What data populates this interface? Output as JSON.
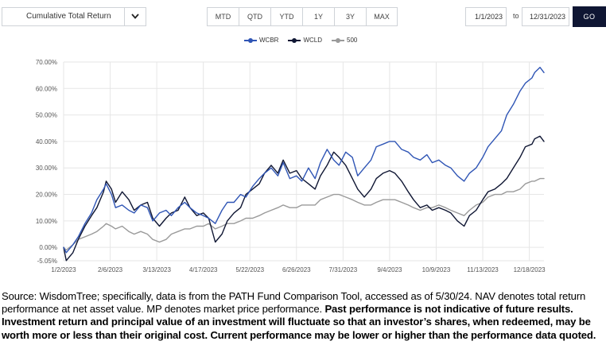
{
  "controls": {
    "metric_select": "Cumulative Total Return",
    "ranges": [
      "MTD",
      "QTD",
      "YTD",
      "1Y",
      "3Y",
      "MAX"
    ],
    "start_date": "1/1/2023",
    "to_label": "to",
    "end_date": "12/31/2023",
    "go_label": "GO"
  },
  "colors": {
    "WCBR": "#2f55b5",
    "WCLD": "#0f1633",
    "500": "#9a9a9a",
    "grid": "#e6e6e6"
  },
  "chart_data": {
    "type": "line",
    "title": "",
    "xlabel": "",
    "ylabel": "",
    "ylim": [
      -5.05,
      70
    ],
    "yticks": [
      -5.05,
      0,
      10,
      20,
      30,
      40,
      50,
      60,
      70
    ],
    "ytick_labels": [
      "-5.05%",
      "0.00%",
      "10.00%",
      "20.00%",
      "30.00%",
      "40.00%",
      "50.00%",
      "60.00%",
      "70.00%"
    ],
    "xticks": [
      "1/2/2023",
      "2/6/2023",
      "3/13/2023",
      "4/17/2023",
      "5/22/2023",
      "6/26/2023",
      "7/31/2023",
      "9/4/2023",
      "10/9/2023",
      "11/13/2023",
      "12/18/2023"
    ],
    "x_range": [
      "2023-01-02",
      "2023-12-29"
    ],
    "legend_position": "top-center",
    "series": [
      {
        "name": "WCBR",
        "points": [
          [
            "2023-01-02",
            0
          ],
          [
            "2023-01-04",
            -2
          ],
          [
            "2023-01-09",
            1
          ],
          [
            "2023-01-13",
            4
          ],
          [
            "2023-01-18",
            9
          ],
          [
            "2023-01-23",
            13
          ],
          [
            "2023-01-27",
            18
          ],
          [
            "2023-02-01",
            22
          ],
          [
            "2023-02-03",
            24
          ],
          [
            "2023-02-07",
            20
          ],
          [
            "2023-02-10",
            15
          ],
          [
            "2023-02-15",
            16
          ],
          [
            "2023-02-20",
            14
          ],
          [
            "2023-02-24",
            13
          ],
          [
            "2023-03-01",
            16
          ],
          [
            "2023-03-06",
            15
          ],
          [
            "2023-03-10",
            10
          ],
          [
            "2023-03-15",
            13
          ],
          [
            "2023-03-20",
            14
          ],
          [
            "2023-03-24",
            12
          ],
          [
            "2023-03-29",
            15
          ],
          [
            "2023-04-03",
            17
          ],
          [
            "2023-04-07",
            15
          ],
          [
            "2023-04-12",
            13
          ],
          [
            "2023-04-17",
            12
          ],
          [
            "2023-04-21",
            11
          ],
          [
            "2023-04-26",
            9
          ],
          [
            "2023-05-01",
            14
          ],
          [
            "2023-05-05",
            17
          ],
          [
            "2023-05-10",
            17
          ],
          [
            "2023-05-15",
            20
          ],
          [
            "2023-05-19",
            19
          ],
          [
            "2023-05-24",
            23
          ],
          [
            "2023-05-29",
            26
          ],
          [
            "2023-06-02",
            28
          ],
          [
            "2023-06-07",
            30
          ],
          [
            "2023-06-12",
            27
          ],
          [
            "2023-06-16",
            32
          ],
          [
            "2023-06-21",
            26
          ],
          [
            "2023-06-26",
            27
          ],
          [
            "2023-06-30",
            25
          ],
          [
            "2023-07-05",
            30
          ],
          [
            "2023-07-10",
            26
          ],
          [
            "2023-07-14",
            32
          ],
          [
            "2023-07-19",
            37
          ],
          [
            "2023-07-24",
            33
          ],
          [
            "2023-07-28",
            31
          ],
          [
            "2023-08-02",
            36
          ],
          [
            "2023-08-07",
            34
          ],
          [
            "2023-08-11",
            27
          ],
          [
            "2023-08-16",
            30
          ],
          [
            "2023-08-21",
            33
          ],
          [
            "2023-08-25",
            38
          ],
          [
            "2023-08-30",
            39
          ],
          [
            "2023-09-04",
            40
          ],
          [
            "2023-09-08",
            40
          ],
          [
            "2023-09-13",
            37
          ],
          [
            "2023-09-18",
            36
          ],
          [
            "2023-09-22",
            34
          ],
          [
            "2023-09-27",
            33
          ],
          [
            "2023-10-02",
            35
          ],
          [
            "2023-10-06",
            32
          ],
          [
            "2023-10-11",
            33
          ],
          [
            "2023-10-16",
            31
          ],
          [
            "2023-10-20",
            30
          ],
          [
            "2023-10-25",
            27
          ],
          [
            "2023-10-30",
            25
          ],
          [
            "2023-11-03",
            28
          ],
          [
            "2023-11-08",
            30
          ],
          [
            "2023-11-13",
            34
          ],
          [
            "2023-11-17",
            38
          ],
          [
            "2023-11-22",
            41
          ],
          [
            "2023-11-27",
            44
          ],
          [
            "2023-12-01",
            50
          ],
          [
            "2023-12-06",
            54
          ],
          [
            "2023-12-11",
            59
          ],
          [
            "2023-12-15",
            62
          ],
          [
            "2023-12-20",
            64
          ],
          [
            "2023-12-22",
            66
          ],
          [
            "2023-12-26",
            68
          ],
          [
            "2023-12-29",
            66
          ]
        ]
      },
      {
        "name": "WCLD",
        "points": [
          [
            "2023-01-02",
            0
          ],
          [
            "2023-01-04",
            -5
          ],
          [
            "2023-01-09",
            -2
          ],
          [
            "2023-01-13",
            3
          ],
          [
            "2023-01-18",
            8
          ],
          [
            "2023-01-23",
            12
          ],
          [
            "2023-01-27",
            15
          ],
          [
            "2023-02-01",
            21
          ],
          [
            "2023-02-03",
            25
          ],
          [
            "2023-02-07",
            22
          ],
          [
            "2023-02-10",
            17
          ],
          [
            "2023-02-15",
            21
          ],
          [
            "2023-02-20",
            18
          ],
          [
            "2023-02-24",
            14
          ],
          [
            "2023-03-01",
            16
          ],
          [
            "2023-03-06",
            17
          ],
          [
            "2023-03-10",
            11
          ],
          [
            "2023-03-15",
            8
          ],
          [
            "2023-03-20",
            11
          ],
          [
            "2023-03-24",
            13
          ],
          [
            "2023-03-29",
            14
          ],
          [
            "2023-04-03",
            19
          ],
          [
            "2023-04-07",
            15
          ],
          [
            "2023-04-12",
            12
          ],
          [
            "2023-04-17",
            13
          ],
          [
            "2023-04-21",
            11
          ],
          [
            "2023-04-26",
            2
          ],
          [
            "2023-05-01",
            5
          ],
          [
            "2023-05-05",
            10
          ],
          [
            "2023-05-10",
            13
          ],
          [
            "2023-05-15",
            15
          ],
          [
            "2023-05-19",
            20
          ],
          [
            "2023-05-24",
            22
          ],
          [
            "2023-05-29",
            24
          ],
          [
            "2023-06-02",
            28
          ],
          [
            "2023-06-07",
            31
          ],
          [
            "2023-06-12",
            28
          ],
          [
            "2023-06-16",
            33
          ],
          [
            "2023-06-21",
            28
          ],
          [
            "2023-06-26",
            29
          ],
          [
            "2023-06-30",
            26
          ],
          [
            "2023-07-05",
            24
          ],
          [
            "2023-07-10",
            22
          ],
          [
            "2023-07-14",
            27
          ],
          [
            "2023-07-19",
            31
          ],
          [
            "2023-07-24",
            36
          ],
          [
            "2023-07-28",
            34
          ],
          [
            "2023-08-02",
            31
          ],
          [
            "2023-08-07",
            26
          ],
          [
            "2023-08-11",
            22
          ],
          [
            "2023-08-16",
            19
          ],
          [
            "2023-08-21",
            22
          ],
          [
            "2023-08-25",
            26
          ],
          [
            "2023-08-30",
            28
          ],
          [
            "2023-09-04",
            29
          ],
          [
            "2023-09-08",
            28
          ],
          [
            "2023-09-13",
            25
          ],
          [
            "2023-09-18",
            21
          ],
          [
            "2023-09-22",
            18
          ],
          [
            "2023-09-27",
            15
          ],
          [
            "2023-10-02",
            16
          ],
          [
            "2023-10-06",
            14
          ],
          [
            "2023-10-11",
            15
          ],
          [
            "2023-10-16",
            14
          ],
          [
            "2023-10-20",
            13
          ],
          [
            "2023-10-25",
            10
          ],
          [
            "2023-10-30",
            8
          ],
          [
            "2023-11-03",
            12
          ],
          [
            "2023-11-08",
            14
          ],
          [
            "2023-11-13",
            18
          ],
          [
            "2023-11-17",
            21
          ],
          [
            "2023-11-22",
            22
          ],
          [
            "2023-11-27",
            24
          ],
          [
            "2023-12-01",
            26
          ],
          [
            "2023-12-06",
            30
          ],
          [
            "2023-12-11",
            34
          ],
          [
            "2023-12-15",
            38
          ],
          [
            "2023-12-20",
            39
          ],
          [
            "2023-12-22",
            41
          ],
          [
            "2023-12-26",
            42
          ],
          [
            "2023-12-29",
            40
          ]
        ]
      },
      {
        "name": "500",
        "points": [
          [
            "2023-01-02",
            0
          ],
          [
            "2023-01-04",
            -1
          ],
          [
            "2023-01-09",
            1
          ],
          [
            "2023-01-13",
            3
          ],
          [
            "2023-01-18",
            4
          ],
          [
            "2023-01-23",
            5
          ],
          [
            "2023-01-27",
            6
          ],
          [
            "2023-02-01",
            8
          ],
          [
            "2023-02-03",
            9
          ],
          [
            "2023-02-07",
            8
          ],
          [
            "2023-02-10",
            7
          ],
          [
            "2023-02-15",
            8
          ],
          [
            "2023-02-20",
            6
          ],
          [
            "2023-02-24",
            5
          ],
          [
            "2023-03-01",
            6
          ],
          [
            "2023-03-06",
            5
          ],
          [
            "2023-03-10",
            3
          ],
          [
            "2023-03-15",
            2
          ],
          [
            "2023-03-20",
            3
          ],
          [
            "2023-03-24",
            5
          ],
          [
            "2023-03-29",
            6
          ],
          [
            "2023-04-03",
            7
          ],
          [
            "2023-04-07",
            7
          ],
          [
            "2023-04-12",
            8
          ],
          [
            "2023-04-17",
            8
          ],
          [
            "2023-04-21",
            9
          ],
          [
            "2023-04-26",
            7
          ],
          [
            "2023-05-01",
            8
          ],
          [
            "2023-05-05",
            9
          ],
          [
            "2023-05-10",
            9
          ],
          [
            "2023-05-15",
            10
          ],
          [
            "2023-05-19",
            11
          ],
          [
            "2023-05-24",
            11
          ],
          [
            "2023-05-29",
            12
          ],
          [
            "2023-06-02",
            13
          ],
          [
            "2023-06-07",
            14
          ],
          [
            "2023-06-12",
            15
          ],
          [
            "2023-06-16",
            16
          ],
          [
            "2023-06-21",
            15
          ],
          [
            "2023-06-26",
            15
          ],
          [
            "2023-06-30",
            16
          ],
          [
            "2023-07-05",
            16
          ],
          [
            "2023-07-10",
            16
          ],
          [
            "2023-07-14",
            18
          ],
          [
            "2023-07-19",
            19
          ],
          [
            "2023-07-24",
            20
          ],
          [
            "2023-07-28",
            20
          ],
          [
            "2023-08-02",
            19
          ],
          [
            "2023-08-07",
            18
          ],
          [
            "2023-08-11",
            17
          ],
          [
            "2023-08-16",
            16
          ],
          [
            "2023-08-21",
            16
          ],
          [
            "2023-08-25",
            17
          ],
          [
            "2023-08-30",
            18
          ],
          [
            "2023-09-04",
            18
          ],
          [
            "2023-09-08",
            18
          ],
          [
            "2023-09-13",
            17
          ],
          [
            "2023-09-18",
            16
          ],
          [
            "2023-09-22",
            15
          ],
          [
            "2023-09-27",
            14
          ],
          [
            "2023-10-02",
            15
          ],
          [
            "2023-10-06",
            15
          ],
          [
            "2023-10-11",
            16
          ],
          [
            "2023-10-16",
            15
          ],
          [
            "2023-10-20",
            14
          ],
          [
            "2023-10-25",
            13
          ],
          [
            "2023-10-30",
            12
          ],
          [
            "2023-11-03",
            14
          ],
          [
            "2023-11-08",
            16
          ],
          [
            "2023-11-13",
            17
          ],
          [
            "2023-11-17",
            19
          ],
          [
            "2023-11-22",
            20
          ],
          [
            "2023-11-27",
            20
          ],
          [
            "2023-12-01",
            21
          ],
          [
            "2023-12-06",
            21
          ],
          [
            "2023-12-11",
            22
          ],
          [
            "2023-12-15",
            24
          ],
          [
            "2023-12-20",
            25
          ],
          [
            "2023-12-22",
            25
          ],
          [
            "2023-12-26",
            26
          ],
          [
            "2023-12-29",
            26
          ]
        ]
      }
    ]
  },
  "footnote": {
    "plain": "Source: WisdomTree; specifically, data is from the PATH Fund Comparison Tool, accessed as of 5/30/24. NAV denotes total return performance at net asset value. MP denotes market price performance. ",
    "bold": "Past performance is not indicative of future results. Investment return and principal value of an investment will fluctuate so that an investor’s shares, when redeemed, may be worth more or less than their original cost. Current performance may be lower or higher than the performance data quoted."
  }
}
